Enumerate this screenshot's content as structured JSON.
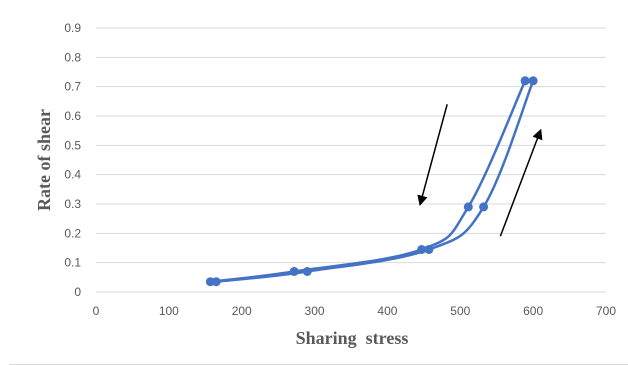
{
  "chart_data": {
    "type": "scatter",
    "title": "",
    "xlabel": "Sharing  stress",
    "ylabel": "Rate of shear",
    "xlim": [
      0,
      700
    ],
    "ylim": [
      0,
      0.9
    ],
    "xticks": [
      "0",
      "100",
      "200",
      "300",
      "400",
      "500",
      "600",
      "700"
    ],
    "yticks": [
      "0",
      "0.1",
      "0.2",
      "0.3",
      "0.4",
      "0.5",
      "0.6",
      "0.7",
      "0.8",
      "0.9"
    ],
    "grid": true,
    "series": [
      {
        "points": [
          {
            "x": 157,
            "y": 0.035
          },
          {
            "x": 272,
            "y": 0.07
          },
          {
            "x": 447,
            "y": 0.145
          },
          {
            "x": 511,
            "y": 0.29
          },
          {
            "x": 589,
            "y": 0.72
          }
        ]
      },
      {
        "points": [
          {
            "x": 165,
            "y": 0.035
          },
          {
            "x": 290,
            "y": 0.07
          },
          {
            "x": 457,
            "y": 0.145
          },
          {
            "x": 532,
            "y": 0.29
          },
          {
            "x": 600,
            "y": 0.72
          }
        ]
      }
    ],
    "colors": {
      "series": "#4472c4",
      "grid": "#d9d9d9",
      "text": "#595959",
      "title_text": "#595959",
      "arrow": "#000000"
    },
    "annotations": [
      {
        "type": "arrow",
        "direction": "down",
        "from": {
          "x": 482,
          "y": 0.64
        },
        "to": {
          "x": 445,
          "y": 0.3
        }
      },
      {
        "type": "arrow",
        "direction": "up",
        "from": {
          "x": 555,
          "y": 0.19
        },
        "to": {
          "x": 610,
          "y": 0.55
        }
      }
    ]
  }
}
